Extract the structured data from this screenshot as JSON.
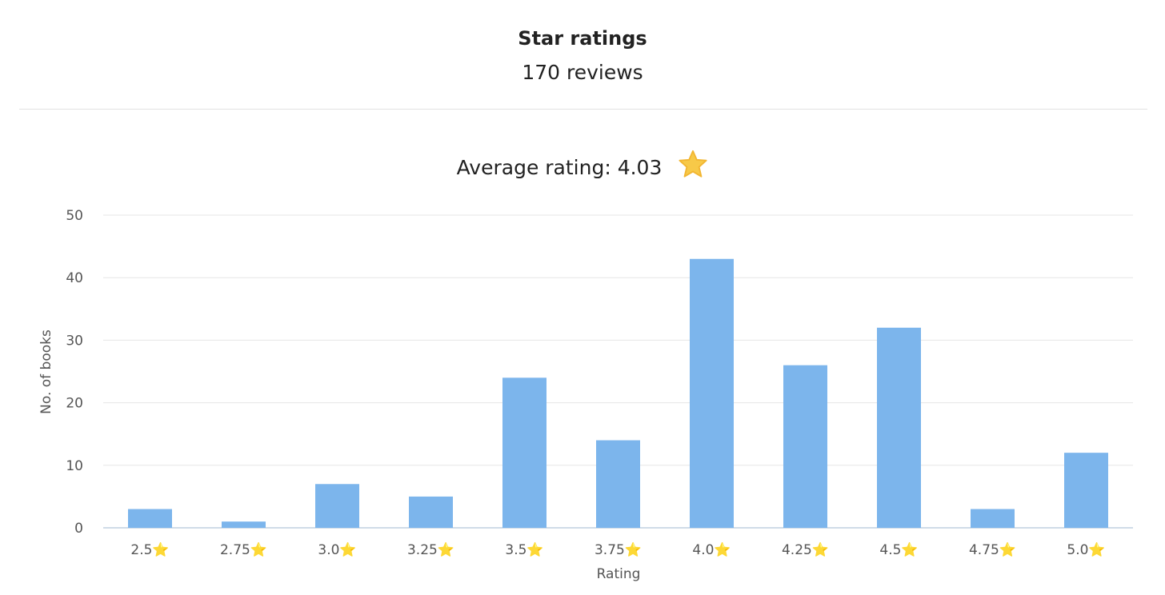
{
  "header": {
    "title": "Star ratings",
    "subtitle": "170 reviews",
    "average_label": "Average rating: 4.03"
  },
  "icons": {
    "average_star": "star-icon"
  },
  "colors": {
    "bar": "#7cb5ec",
    "star": "#f7c948",
    "grid": "#e6e6e6",
    "axis": "#c0d0e0"
  },
  "chart_data": {
    "type": "bar",
    "categories": [
      "2.5⭐",
      "2.75⭐",
      "3.0⭐",
      "3.25⭐",
      "3.5⭐",
      "3.75⭐",
      "4.0⭐",
      "4.25⭐",
      "4.5⭐",
      "4.75⭐",
      "5.0⭐"
    ],
    "values": [
      3,
      1,
      7,
      5,
      24,
      14,
      43,
      26,
      32,
      3,
      12
    ],
    "xlabel": "Rating",
    "ylabel": "No. of books",
    "ylim": [
      0,
      50
    ],
    "yticks": [
      0,
      10,
      20,
      30,
      40,
      50
    ],
    "grid": true,
    "legend": false
  }
}
